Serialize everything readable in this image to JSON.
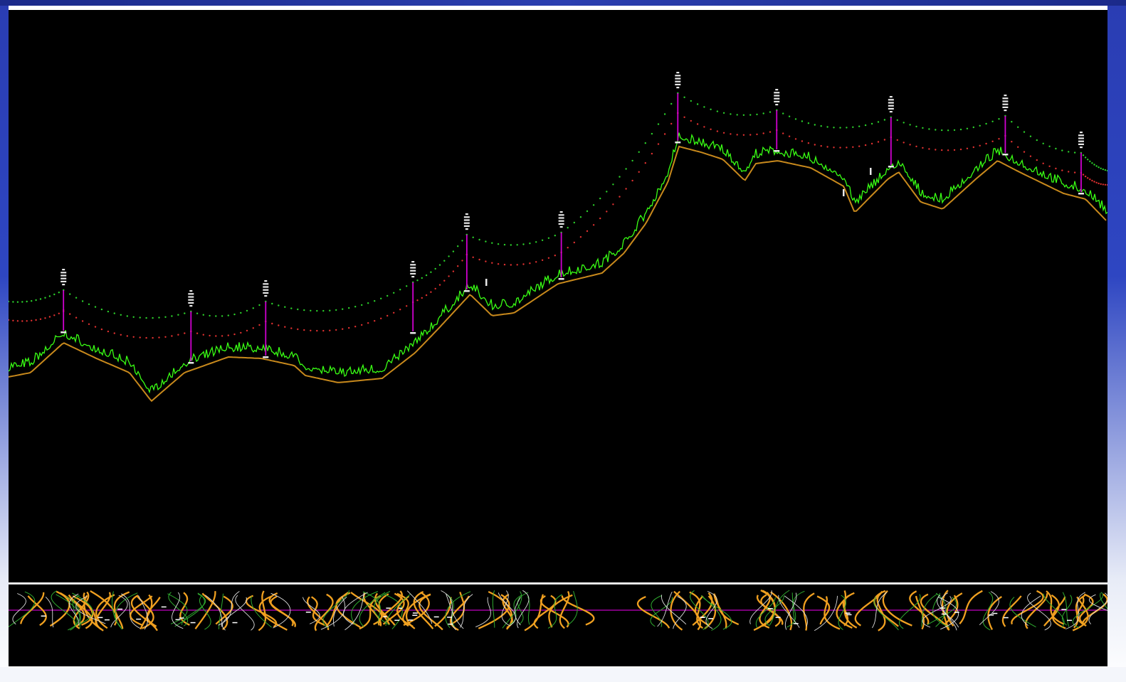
{
  "colors": {
    "background": "#000000",
    "ground_line": "#39ff14",
    "terrain_line": "#c8891c",
    "upper_conductor": "#2bd12b",
    "lower_conductor": "#e03030",
    "tower": "#d000d0",
    "insulator": "#e8e8e8",
    "plan_centerline": "#c000c0",
    "plan_roads": "#f0a020"
  },
  "profile": {
    "towers": [
      {
        "station": 0.05,
        "ground": 465,
        "top": 408
      },
      {
        "station": 0.166,
        "ground": 508,
        "top": 438
      },
      {
        "station": 0.234,
        "ground": 500,
        "top": 424
      },
      {
        "station": 0.368,
        "ground": 466,
        "top": 397
      },
      {
        "station": 0.417,
        "ground": 407,
        "top": 330
      },
      {
        "station": 0.503,
        "ground": 390,
        "top": 327
      },
      {
        "station": 0.609,
        "ground": 198,
        "top": 131
      },
      {
        "station": 0.699,
        "ground": 210,
        "top": 155
      },
      {
        "station": 0.803,
        "ground": 232,
        "top": 165
      },
      {
        "station": 0.907,
        "ground": 215,
        "top": 163
      },
      {
        "station": 0.976,
        "ground": 270,
        "top": 215
      }
    ],
    "terrain_points": [
      [
        0.0,
        526
      ],
      [
        0.02,
        520
      ],
      [
        0.05,
        478
      ],
      [
        0.08,
        500
      ],
      [
        0.11,
        520
      ],
      [
        0.13,
        560
      ],
      [
        0.16,
        520
      ],
      [
        0.2,
        498
      ],
      [
        0.23,
        500
      ],
      [
        0.26,
        510
      ],
      [
        0.27,
        524
      ],
      [
        0.3,
        534
      ],
      [
        0.34,
        528
      ],
      [
        0.37,
        492
      ],
      [
        0.39,
        460
      ],
      [
        0.42,
        410
      ],
      [
        0.44,
        440
      ],
      [
        0.46,
        436
      ],
      [
        0.5,
        395
      ],
      [
        0.54,
        380
      ],
      [
        0.56,
        352
      ],
      [
        0.58,
        310
      ],
      [
        0.6,
        252
      ],
      [
        0.61,
        202
      ],
      [
        0.63,
        210
      ],
      [
        0.65,
        220
      ],
      [
        0.67,
        250
      ],
      [
        0.68,
        226
      ],
      [
        0.7,
        222
      ],
      [
        0.73,
        232
      ],
      [
        0.76,
        258
      ],
      [
        0.77,
        295
      ],
      [
        0.8,
        248
      ],
      [
        0.81,
        238
      ],
      [
        0.83,
        280
      ],
      [
        0.85,
        290
      ],
      [
        0.88,
        248
      ],
      [
        0.9,
        222
      ],
      [
        0.92,
        238
      ],
      [
        0.96,
        268
      ],
      [
        0.98,
        276
      ],
      [
        1.0,
        308
      ]
    ]
  },
  "plan": {
    "centerline_y": 0.33
  }
}
